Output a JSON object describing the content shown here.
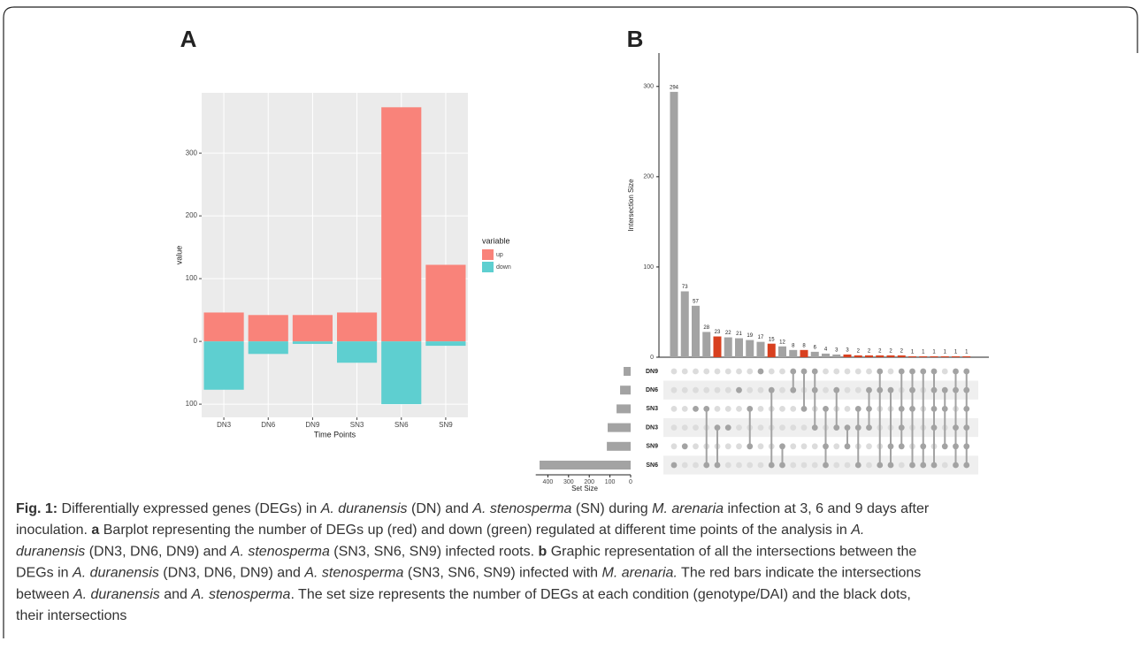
{
  "chart_data": [
    {
      "type": "bar",
      "label": "A",
      "stacked": true,
      "grid": true,
      "x_label": "Time Points",
      "y_label": "value",
      "categories": [
        "DN3",
        "DN6",
        "DN9",
        "SN3",
        "SN6",
        "SN9"
      ],
      "series": [
        {
          "name": "up",
          "color": "#f9837a",
          "values": [
            46,
            42,
            42,
            46,
            373,
            122
          ]
        },
        {
          "name": "down",
          "color": "#5ecfd0",
          "values": [
            -77,
            -20,
            -4,
            -34,
            -100,
            -7
          ]
        }
      ],
      "legend_title": "variable",
      "ylim": [
        -121,
        396
      ],
      "yticks": [
        {
          "value": -100,
          "label": "100"
        },
        0,
        100,
        200,
        300
      ]
    },
    {
      "type": "upset",
      "label": "B",
      "y_label": "Intersection Size",
      "x_label": "Set Size",
      "intersection_sizes": [
        294,
        73,
        57,
        28,
        23,
        22,
        21,
        19,
        17,
        15,
        12,
        8,
        8,
        6,
        4,
        3,
        3,
        2,
        2,
        2,
        2,
        2,
        1,
        1,
        1,
        1,
        1,
        1
      ],
      "bar_colors": [
        "#a3a3a3",
        "#a3a3a3",
        "#a3a3a3",
        "#a3a3a3",
        "#d8401f",
        "#a3a3a3",
        "#a3a3a3",
        "#a3a3a3",
        "#a3a3a3",
        "#d8401f",
        "#a3a3a3",
        "#a3a3a3",
        "#d8401f",
        "#a3a3a3",
        "#a3a3a3",
        "#a3a3a3",
        "#d8401f",
        "#d8401f",
        "#d8401f",
        "#d8401f",
        "#d8401f",
        "#d8401f",
        "#d8401f",
        "#d8401f",
        "#d8401f",
        "#d8401f",
        "#d8401f",
        "#d8401f"
      ],
      "ylim": [
        0,
        337
      ],
      "yticks": [
        0,
        100,
        200,
        300
      ],
      "sets": [
        "DN9",
        "DN6",
        "SN3",
        "DN3",
        "SN9",
        "SN6"
      ],
      "set_sizes": [
        34,
        51,
        68,
        111,
        115,
        440
      ],
      "set_color": "#a3a3a3",
      "xlim": [
        0,
        450
      ],
      "xticks": [
        400,
        300,
        200,
        100,
        0
      ],
      "intersections": [
        [
          "SN6"
        ],
        [
          "SN9"
        ],
        [
          "SN3"
        ],
        [
          "SN3",
          "SN6"
        ],
        [
          "DN3",
          "SN6"
        ],
        [
          "DN3"
        ],
        [
          "DN6"
        ],
        [
          "SN3",
          "SN9"
        ],
        [
          "DN9"
        ],
        [
          "DN6",
          "SN6"
        ],
        [
          "SN9",
          "SN6"
        ],
        [
          "DN9",
          "DN6"
        ],
        [
          "DN9",
          "SN3"
        ],
        [
          "DN9",
          "DN6",
          "DN3"
        ],
        [
          "SN3",
          "SN9",
          "SN6"
        ],
        [
          "DN6",
          "DN3"
        ],
        [
          "DN3",
          "SN9"
        ],
        [
          "SN3",
          "DN3",
          "SN6"
        ],
        [
          "DN6",
          "SN3",
          "DN3"
        ],
        [
          "DN9",
          "DN6",
          "SN6"
        ],
        [
          "DN6",
          "SN9",
          "SN6"
        ],
        [
          "DN9",
          "SN3",
          "DN3",
          "SN9"
        ],
        [
          "DN9",
          "DN6",
          "SN3",
          "SN6"
        ],
        [
          "DN9",
          "SN9",
          "SN6"
        ],
        [
          "DN9",
          "DN6",
          "SN3",
          "DN3",
          "SN6"
        ],
        [
          "DN6",
          "SN3",
          "SN9"
        ],
        [
          "DN9",
          "DN6",
          "DN3",
          "SN9",
          "SN6"
        ],
        [
          "DN9",
          "DN6",
          "SN3",
          "DN3",
          "SN9",
          "SN6"
        ]
      ]
    }
  ],
  "caption": [
    [
      {
        "text": "Fig. 1:",
        "style": "bold"
      },
      {
        "text": " Differentially expressed genes (DEGs) in ",
        "style": "normal"
      },
      {
        "text": "A. duranensis",
        "style": "italic"
      },
      {
        "text": " (DN) and ",
        "style": "normal"
      },
      {
        "text": "A. stenosperma",
        "style": "italic"
      },
      {
        "text": " (SN) during ",
        "style": "normal"
      },
      {
        "text": "M. arenaria",
        "style": "italic"
      },
      {
        "text": " infection at 3, 6 and 9 days after",
        "style": "normal"
      }
    ],
    [
      {
        "text": "inoculation. ",
        "style": "normal"
      },
      {
        "text": "a",
        "style": "bold"
      },
      {
        "text": " Barplot representing the number of DEGs up (red) and down (green) regulated at different time points of the analysis in ",
        "style": "normal"
      },
      {
        "text": "A.",
        "style": "italic"
      }
    ],
    [
      {
        "text": "duranensis",
        "style": "italic"
      },
      {
        "text": " (DN3, DN6, DN9) and ",
        "style": "normal"
      },
      {
        "text": "A. stenosperma",
        "style": "italic"
      },
      {
        "text": " (SN3, SN6, SN9) infected roots. ",
        "style": "normal"
      },
      {
        "text": "b",
        "style": "bold"
      },
      {
        "text": " Graphic representation of all the intersections between the",
        "style": "normal"
      }
    ],
    [
      {
        "text": "DEGs in ",
        "style": "normal"
      },
      {
        "text": "A. duranensis",
        "style": "italic"
      },
      {
        "text": " (DN3, DN6, DN9) and ",
        "style": "normal"
      },
      {
        "text": "A. stenosperma",
        "style": "italic"
      },
      {
        "text": " (SN3, SN6, SN9) infected with ",
        "style": "normal"
      },
      {
        "text": "M. arenaria.",
        "style": "italic"
      },
      {
        "text": " The red bars indicate the intersections",
        "style": "normal"
      }
    ],
    [
      {
        "text": "between ",
        "style": "normal"
      },
      {
        "text": "A. duranensis",
        "style": "italic"
      },
      {
        "text": " and ",
        "style": "normal"
      },
      {
        "text": "A. stenosperma",
        "style": "italic"
      },
      {
        "text": ". The set size represents the number of DEGs at each condition (genotype/DAI) and the black dots,",
        "style": "normal"
      }
    ],
    [
      {
        "text": "their intersections",
        "style": "normal"
      }
    ]
  ]
}
